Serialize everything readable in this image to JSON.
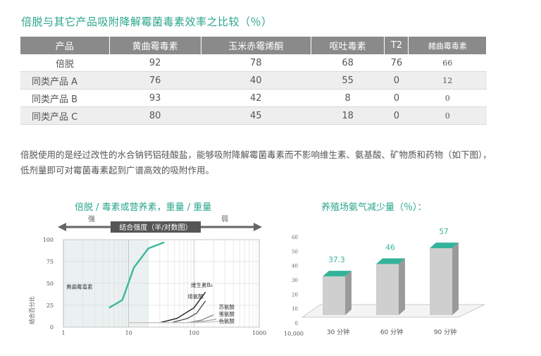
{
  "title": "倍脱与其它产品吸附降解霉菌毒素效率之比较（％）",
  "table": {
    "headers": [
      "产品",
      "黄曲霉毒素",
      "玉米赤霉烯酮",
      "呕吐毒素",
      "T2",
      "赭曲霉毒素"
    ],
    "rows": [
      [
        "倍脱",
        "92",
        "78",
        "68",
        "76",
        "66"
      ],
      [
        "同类产品 A",
        "76",
        "40",
        "55",
        "0",
        "12"
      ],
      [
        "同类产品 B",
        "93",
        "42",
        "8",
        "0",
        "0"
      ],
      [
        "同类产品 C",
        "80",
        "45",
        "18",
        "0",
        "0"
      ]
    ]
  },
  "paragraph": "倍脱使用的是经过改性的水合钠钙铝硅酸盐，能够吸附降解霉菌毒素而不影响维生素、氨基酸、矿物质和药物（如下图），低剂量即可对霉菌毒素起到广谱高效的吸附作用。",
  "chart_data": [
    {
      "type": "line",
      "title": "倍脱 / 毒素或营养素，重量 / 重量",
      "scale_label_strong": "强",
      "scale_label_weak": "弱",
      "scale_caption": "结合强度（半/对数图）",
      "ylabel": "结合百分比",
      "x_scale": "log",
      "xlim": [
        1,
        1000
      ],
      "ylim": [
        0,
        100
      ],
      "x_ticks": [
        "1",
        "10",
        "100",
        "1000"
      ],
      "y_ticks": [
        "0",
        "25",
        "50",
        "75",
        "100"
      ],
      "series": [
        {
          "name": "黄曲霉毒素",
          "color": "#3cb79b",
          "points": [
            [
              5,
              22
            ],
            [
              8,
              31
            ],
            [
              12,
              68
            ],
            [
              20,
              90
            ],
            [
              35,
              97
            ]
          ]
        },
        {
          "name": "维生素B₆",
          "color": "#222222",
          "points": [
            [
              30,
              5
            ],
            [
              55,
              10
            ],
            [
              100,
              22
            ],
            [
              150,
              40
            ]
          ]
        },
        {
          "name": "组氨酸",
          "color": "#555555",
          "points": [
            [
              45,
              5
            ],
            [
              80,
              10
            ],
            [
              110,
              16
            ],
            [
              150,
              30
            ]
          ]
        },
        {
          "name": "苏氨酸",
          "color": "#8a8a8a",
          "points": [
            [
              20,
              5
            ],
            [
              80,
              5
            ],
            [
              130,
              8
            ],
            [
              200,
              14
            ]
          ]
        },
        {
          "name": "蛋氨酸",
          "color": "#a8a8a8",
          "points": [
            [
              10,
              5
            ],
            [
              80,
              5
            ],
            [
              150,
              7
            ],
            [
              220,
              9
            ]
          ]
        },
        {
          "name": "色氨酸",
          "color": "#c8c8c8",
          "points": [
            [
              10,
              5
            ],
            [
              100,
              5
            ],
            [
              200,
              6
            ],
            [
              300,
              7
            ]
          ]
        }
      ],
      "x_extra_label": "10,000"
    },
    {
      "type": "bar",
      "title": "养殖场氨气减少量（％）：",
      "categories": [
        "30 分钟",
        "60 分钟",
        "90 分钟"
      ],
      "values": [
        37.3,
        46,
        57
      ],
      "value_labels": [
        "37.3",
        "46",
        "57"
      ],
      "ylim": [
        0,
        60
      ],
      "y_ticks": [
        "0",
        "10",
        "20",
        "30",
        "40",
        "50",
        "60"
      ],
      "bar_color": "#cfcfcf",
      "bar_top_color": "#35b39a"
    }
  ],
  "colors": {
    "accent": "#2aa58c",
    "header_gray": "#8a8a8a",
    "shade": "#eaf1f0"
  }
}
